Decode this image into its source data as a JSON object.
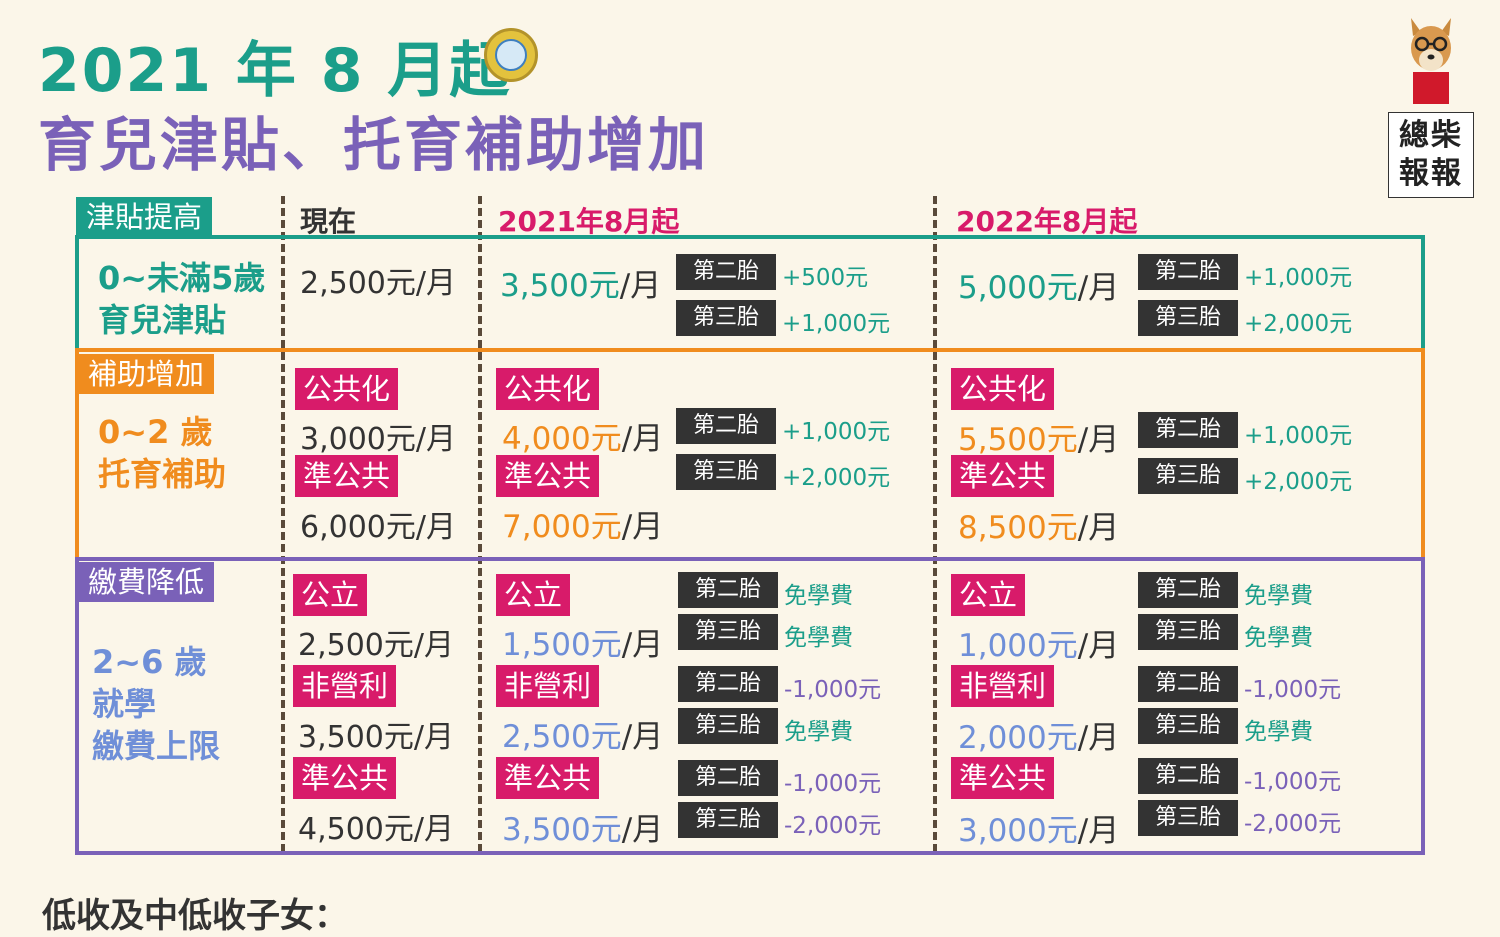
{
  "title_line1": "2021 年 8 月起",
  "title_line2": "育兒津貼、托育補助增加",
  "brand": {
    "line1": "總柴",
    "line2": "報報"
  },
  "columns": {
    "now": "現在",
    "aug2021": "2021年8月起",
    "aug2022": "2022年8月起"
  },
  "colors": {
    "teal": "#1b9e8a",
    "orange": "#f08c1e",
    "purple": "#7a61b8",
    "pink": "#d81b6a",
    "blue": "#6f8fd8",
    "dark": "#333333"
  },
  "s1": {
    "tag": "津貼提高",
    "label1": "0~未滿5歲",
    "label2": "育兒津貼",
    "now": "2,500元/月",
    "y21": {
      "amount": "3,500元",
      "unit": "/月"
    },
    "y21_b": [
      {
        "tag": "第二胎",
        "val": "+500元"
      },
      {
        "tag": "第三胎",
        "val": "+1,000元"
      }
    ],
    "y22": {
      "amount": "5,000元",
      "unit": "/月"
    },
    "y22_b": [
      {
        "tag": "第二胎",
        "val": "+1,000元"
      },
      {
        "tag": "第三胎",
        "val": "+2,000元"
      }
    ]
  },
  "s2": {
    "tag": "補助增加",
    "label1": "0~2 歲",
    "label2": "托育補助",
    "now": [
      {
        "tag": "公共化",
        "amount": "3,000元/月"
      },
      {
        "tag": "準公共",
        "amount": "6,000元/月"
      }
    ],
    "y21": [
      {
        "tag": "公共化",
        "amount": "4,000元",
        "unit": "/月"
      },
      {
        "tag": "準公共",
        "amount": "7,000元",
        "unit": "/月"
      }
    ],
    "y21_b": [
      {
        "tag": "第二胎",
        "val": "+1,000元"
      },
      {
        "tag": "第三胎",
        "val": "+2,000元"
      }
    ],
    "y22": [
      {
        "tag": "公共化",
        "amount": "5,500元",
        "unit": "/月"
      },
      {
        "tag": "準公共",
        "amount": "8,500元",
        "unit": "/月"
      }
    ],
    "y22_b": [
      {
        "tag": "第二胎",
        "val": "+1,000元"
      },
      {
        "tag": "第三胎",
        "val": "+2,000元"
      }
    ]
  },
  "s3": {
    "tag": "繳費降低",
    "label1": "2~6 歲",
    "label2": "就學",
    "label3": "繳費上限",
    "now": [
      {
        "tag": "公立",
        "amount": "2,500元/月"
      },
      {
        "tag": "非營利",
        "amount": "3,500元/月"
      },
      {
        "tag": "準公共",
        "amount": "4,500元/月"
      }
    ],
    "y21": [
      {
        "tag": "公立",
        "amount": "1,500元",
        "unit": "/月"
      },
      {
        "tag": "非營利",
        "amount": "2,500元",
        "unit": "/月"
      },
      {
        "tag": "準公共",
        "amount": "3,500元",
        "unit": "/月"
      }
    ],
    "y21_b": [
      {
        "tag": "第二胎",
        "val": "免學費"
      },
      {
        "tag": "第三胎",
        "val": "免學費"
      },
      {
        "tag": "第二胎",
        "val": "-1,000元"
      },
      {
        "tag": "第三胎",
        "val": "免學費"
      },
      {
        "tag": "第二胎",
        "val": "-1,000元"
      },
      {
        "tag": "第三胎",
        "val": "-2,000元"
      }
    ],
    "y22": [
      {
        "tag": "公立",
        "amount": "1,000元",
        "unit": "/月"
      },
      {
        "tag": "非營利",
        "amount": "2,000元",
        "unit": "/月"
      },
      {
        "tag": "準公共",
        "amount": "3,000元",
        "unit": "/月"
      }
    ],
    "y22_b": [
      {
        "tag": "第二胎",
        "val": "免學費"
      },
      {
        "tag": "第三胎",
        "val": "免學費"
      },
      {
        "tag": "第二胎",
        "val": "-1,000元"
      },
      {
        "tag": "第三胎",
        "val": "免學費"
      },
      {
        "tag": "第二胎",
        "val": "-1,000元"
      },
      {
        "tag": "第三胎",
        "val": "-2,000元"
      }
    ]
  },
  "footer": "低收及中低收子女："
}
